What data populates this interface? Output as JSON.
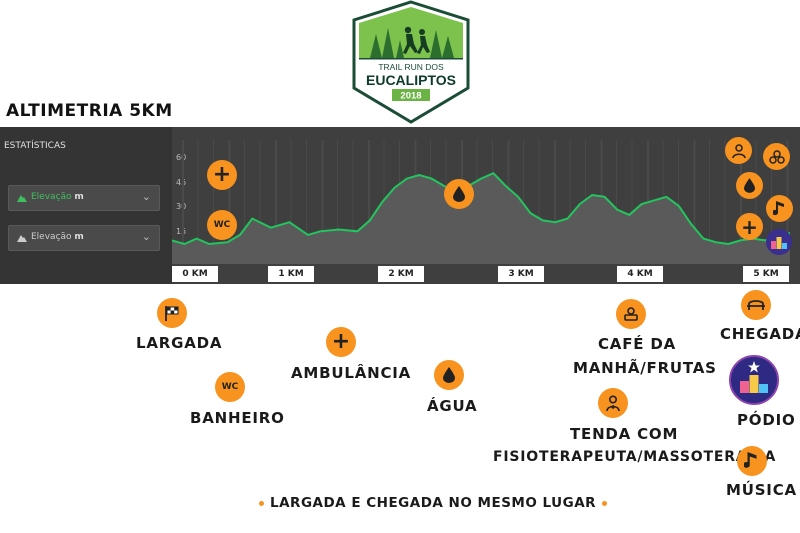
{
  "logo": {
    "line1": "TRAIL RUN DOS",
    "line2": "EUCALIPTOS",
    "year": "2018"
  },
  "title": "ALTIMETRIA 5KM",
  "sidebar": {
    "stats_label": "ESTATÍSTICAS",
    "dropdown1": {
      "label": "Elevação",
      "unit": "m"
    },
    "dropdown2": {
      "label": "Elevação",
      "unit": "m"
    }
  },
  "chart_data": {
    "type": "area",
    "y_ticks": [
      "60",
      "45",
      "30",
      "15"
    ],
    "x_labels": [
      "0 KM",
      "1 KM",
      "2 KM",
      "3 KM",
      "4 KM",
      "5 KM"
    ],
    "ylim": [
      0,
      60
    ],
    "xlim": [
      0,
      5
    ],
    "x": [
      0.0,
      0.1,
      0.2,
      0.3,
      0.45,
      0.55,
      0.65,
      0.8,
      0.95,
      1.1,
      1.2,
      1.35,
      1.5,
      1.6,
      1.7,
      1.8,
      1.9,
      2.0,
      2.1,
      2.2,
      2.3,
      2.4,
      2.5,
      2.6,
      2.7,
      2.8,
      2.9,
      3.0,
      3.1,
      3.2,
      3.3,
      3.4,
      3.5,
      3.6,
      3.7,
      3.8,
      3.9,
      4.0,
      4.1,
      4.2,
      4.3,
      4.4,
      4.5,
      4.6,
      4.7,
      4.8,
      4.9,
      5.0
    ],
    "y": [
      13,
      11,
      14,
      11,
      12,
      16,
      25,
      20,
      23,
      16,
      18,
      19,
      18,
      24,
      34,
      42,
      47,
      49,
      47,
      43,
      40,
      43,
      47,
      50,
      43,
      37,
      28,
      24,
      23,
      25,
      33,
      38,
      37,
      30,
      27,
      33,
      35,
      37,
      32,
      22,
      14,
      12,
      11,
      13,
      14,
      13,
      16,
      17
    ],
    "line_color": "#22c55e"
  },
  "markers": {
    "plus": "+",
    "wc": "WC"
  },
  "legend": {
    "largada": "LARGADA",
    "banheiro": "BANHEIRO",
    "ambulancia": "AMBULÂNCIA",
    "agua": "ÁGUA",
    "cafe_line1": "CAFÉ DA",
    "cafe_line2": "MANHÃ/FRUTAS",
    "tenda_line1": "TENDA COM",
    "tenda_line2": "FISIOTERAPEUTA/MASSOTERAPIA",
    "chegada": "CHEGADA",
    "podio": "PÓDIO",
    "musica": "MÚSICA"
  },
  "footer": "LARGADA E CHEGADA NO MESMO LUGAR",
  "colors": {
    "accent": "#f7931e",
    "panel": "#3f3f3f",
    "line": "#22c55e",
    "logo_green": "#6ab344",
    "logo_dark": "#0d3b2a"
  }
}
